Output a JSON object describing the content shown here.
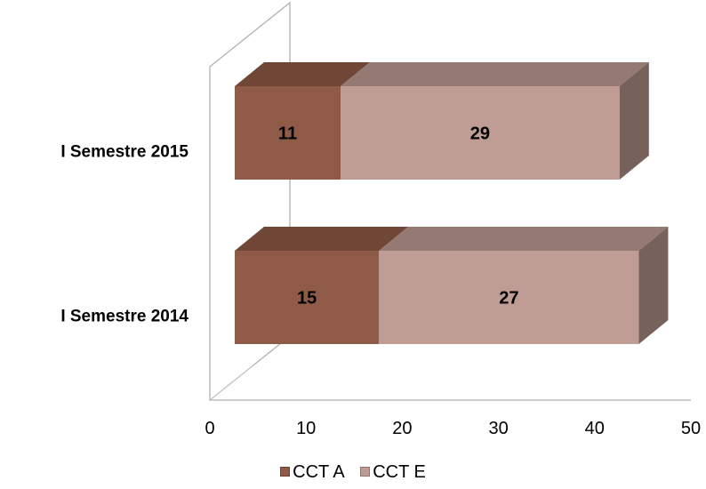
{
  "chart_data": {
    "type": "bar",
    "orientation": "horizontal",
    "stacked": true,
    "three_d": true,
    "categories": [
      "I Semestre 2015",
      "I Semestre 2014"
    ],
    "series": [
      {
        "name": "CCT A",
        "values": [
          11,
          15
        ],
        "color": "#8f5a47"
      },
      {
        "name": "CCT E",
        "values": [
          29,
          27
        ],
        "color": "#bf9c94"
      }
    ],
    "x_ticks": [
      "0",
      "10",
      "20",
      "30",
      "40",
      "50"
    ],
    "xlim": [
      0,
      50
    ],
    "grid": false,
    "legend_position": "bottom",
    "title": "",
    "xlabel": "",
    "ylabel": ""
  }
}
